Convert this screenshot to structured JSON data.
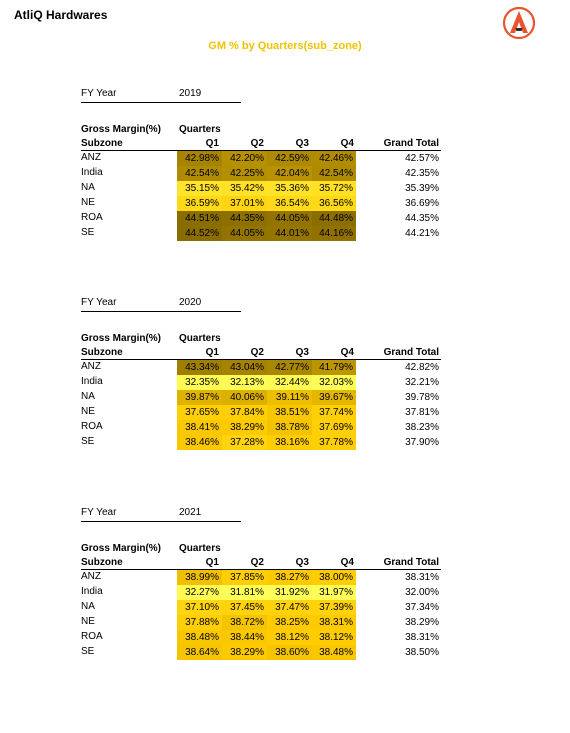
{
  "header": {
    "company": "AtliQ Hardwares",
    "logo_icon": "atliq-logo-icon"
  },
  "title": "GM % by Quarters(sub_zone)",
  "colors": {
    "title": "#f2c200",
    "dark": "#8a6d00",
    "light": "#ffff5a"
  },
  "table_labels": {
    "fy_label": "FY Year",
    "measure": "Gross Margin(%)",
    "column_group": "Quarters",
    "subzone": "Subzone",
    "quarters": [
      "Q1",
      "Q2",
      "Q3",
      "Q4"
    ],
    "grand_total": "Grand Total"
  },
  "years": [
    {
      "year": "2019",
      "rows": [
        {
          "subzone": "ANZ",
          "q": [
            "42.98%",
            "42.20%",
            "42.59%",
            "42.46%"
          ],
          "total": "42.57%"
        },
        {
          "subzone": "India",
          "q": [
            "42.54%",
            "42.25%",
            "42.04%",
            "42.54%"
          ],
          "total": "42.35%"
        },
        {
          "subzone": "NA",
          "q": [
            "35.15%",
            "35.42%",
            "35.36%",
            "35.72%"
          ],
          "total": "35.39%"
        },
        {
          "subzone": "NE",
          "q": [
            "36.59%",
            "37.01%",
            "36.54%",
            "36.56%"
          ],
          "total": "36.69%"
        },
        {
          "subzone": "ROA",
          "q": [
            "44.51%",
            "44.35%",
            "44.05%",
            "44.48%"
          ],
          "total": "44.35%"
        },
        {
          "subzone": "SE",
          "q": [
            "44.52%",
            "44.05%",
            "44.01%",
            "44.16%"
          ],
          "total": "44.21%"
        }
      ]
    },
    {
      "year": "2020",
      "rows": [
        {
          "subzone": "ANZ",
          "q": [
            "43.34%",
            "43.04%",
            "42.77%",
            "41.79%"
          ],
          "total": "42.82%"
        },
        {
          "subzone": "India",
          "q": [
            "32.35%",
            "32.13%",
            "32.44%",
            "32.03%"
          ],
          "total": "32.21%"
        },
        {
          "subzone": "NA",
          "q": [
            "39.87%",
            "40.06%",
            "39.11%",
            "39.67%"
          ],
          "total": "39.78%"
        },
        {
          "subzone": "NE",
          "q": [
            "37.65%",
            "37.84%",
            "38.51%",
            "37.74%"
          ],
          "total": "37.81%"
        },
        {
          "subzone": "ROA",
          "q": [
            "38.41%",
            "38.29%",
            "38.78%",
            "37.69%"
          ],
          "total": "38.23%"
        },
        {
          "subzone": "SE",
          "q": [
            "38.46%",
            "37.28%",
            "38.16%",
            "37.78%"
          ],
          "total": "37.90%"
        }
      ]
    },
    {
      "year": "2021",
      "rows": [
        {
          "subzone": "ANZ",
          "q": [
            "38.99%",
            "37.85%",
            "38.27%",
            "38.00%"
          ],
          "total": "38.31%"
        },
        {
          "subzone": "India",
          "q": [
            "32.27%",
            "31.81%",
            "31.92%",
            "31.97%"
          ],
          "total": "32.00%"
        },
        {
          "subzone": "NA",
          "q": [
            "37.10%",
            "37.45%",
            "37.47%",
            "37.39%"
          ],
          "total": "37.34%"
        },
        {
          "subzone": "NE",
          "q": [
            "37.88%",
            "38.72%",
            "38.25%",
            "38.31%"
          ],
          "total": "38.29%"
        },
        {
          "subzone": "ROA",
          "q": [
            "38.48%",
            "38.44%",
            "38.12%",
            "38.12%"
          ],
          "total": "38.31%"
        },
        {
          "subzone": "SE",
          "q": [
            "38.64%",
            "38.29%",
            "38.60%",
            "38.48%"
          ],
          "total": "38.50%"
        }
      ]
    }
  ]
}
